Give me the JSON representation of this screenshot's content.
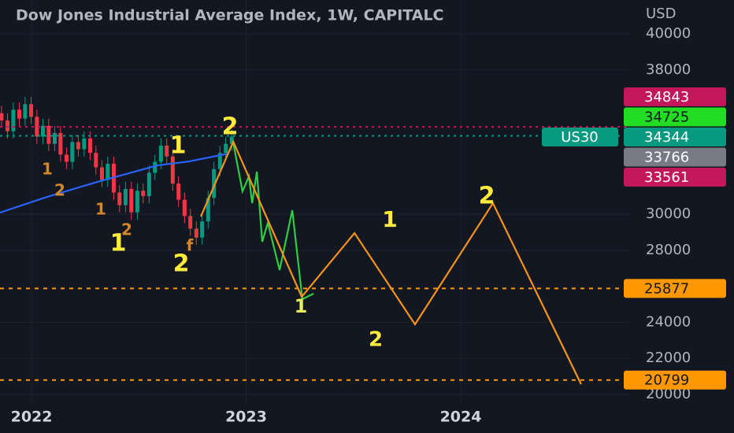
{
  "chart_data": {
    "type": "candlestick",
    "title": "Dow Jones Industrial Average Index, 1W, CAPITALC",
    "currency": "USD",
    "symbol": "US30",
    "xlim": [
      2021.853,
      2024.789
    ],
    "xticks": [
      2022,
      2023,
      2024
    ],
    "ylim": [
      19520,
      41880
    ],
    "yticks": [
      20000,
      22000,
      24000,
      28000,
      30000,
      38000,
      40000
    ],
    "grid": true,
    "candles": {
      "x": [
        2021.86,
        2021.888,
        2021.915,
        2021.943,
        2021.97,
        2021.998,
        2022.025,
        2022.053,
        2022.08,
        2022.108,
        2022.135,
        2022.163,
        2022.19,
        2022.218,
        2022.245,
        2022.273,
        2022.3,
        2022.328,
        2022.355,
        2022.383,
        2022.41,
        2022.438,
        2022.465,
        2022.493,
        2022.52,
        2022.548,
        2022.575,
        2022.603,
        2022.63,
        2022.658,
        2022.685,
        2022.713,
        2022.74,
        2022.768,
        2022.795,
        2022.823,
        2022.85,
        2022.878,
        2022.905,
        2022.933
      ],
      "open": [
        35600,
        35200,
        34600,
        35800,
        35300,
        36100,
        35400,
        34300,
        34900,
        33900,
        34500,
        33300,
        32900,
        34000,
        33600,
        34200,
        33400,
        32600,
        31900,
        32800,
        31200,
        30500,
        31400,
        30100,
        31300,
        31000,
        32300,
        32900,
        33800,
        33200,
        31700,
        30800,
        29900,
        29200,
        28700,
        29600,
        30900,
        32500,
        33400,
        33900
      ],
      "high": [
        36000,
        35600,
        36200,
        36200,
        36500,
        36500,
        35800,
        35300,
        35300,
        34900,
        34900,
        33700,
        34400,
        34400,
        34600,
        34600,
        33800,
        33000,
        33200,
        33200,
        31600,
        31800,
        31800,
        31700,
        31700,
        32700,
        33300,
        34200,
        34200,
        33600,
        32100,
        31200,
        30300,
        29600,
        30000,
        31300,
        32900,
        33800,
        34300,
        34700
      ],
      "low": [
        34800,
        34200,
        34200,
        34900,
        34900,
        35000,
        33900,
        33900,
        33500,
        33500,
        32900,
        32500,
        32500,
        33200,
        33200,
        33000,
        32200,
        31500,
        31500,
        30800,
        30100,
        30100,
        29700,
        29700,
        30600,
        30600,
        31900,
        32500,
        32800,
        31300,
        30400,
        29500,
        28800,
        28300,
        28300,
        29200,
        30500,
        32100,
        33000,
        33500
      ],
      "close": [
        35200,
        34600,
        35800,
        35300,
        36100,
        35400,
        34300,
        34900,
        33900,
        34500,
        33300,
        32900,
        34000,
        33600,
        34200,
        33400,
        32600,
        31900,
        32800,
        31200,
        30500,
        31400,
        30100,
        31300,
        31000,
        32300,
        32900,
        33800,
        33200,
        31700,
        30800,
        29900,
        29200,
        28700,
        29600,
        30900,
        32500,
        33400,
        33900,
        34300
      ],
      "up_color": "#089981",
      "down_color": "#f23645"
    },
    "series": [
      {
        "color": "#2962ff",
        "x": [
          2021.853,
          2022.073,
          2022.294,
          2022.587,
          2022.734,
          2022.917
        ],
        "values": [
          30087,
          30961,
          31747,
          32707,
          32926,
          33362
        ]
      },
      {
        "color": "#2ecc40",
        "x": [
          2022.939,
          2022.983,
          2023.013,
          2023.028,
          2023.05,
          2023.075,
          2023.101,
          2023.156,
          2023.215,
          2023.262,
          2023.314
        ],
        "values": [
          34017,
          31266,
          32096,
          30611,
          32358,
          28472,
          29520,
          26900,
          30218,
          25284,
          25590
        ]
      },
      {
        "color": "#f7931a",
        "x": [
          2022.789,
          2022.94,
          2023.259,
          2023.505,
          2023.787,
          2024.15,
          2024.561
        ],
        "values": [
          29870,
          34020,
          25415,
          28950,
          23890,
          30610,
          20570
        ]
      }
    ],
    "price_labels": [
      {
        "value": 34843,
        "color": "#c2185b",
        "line": true
      },
      {
        "value": 34725,
        "color": "#22dd22",
        "line": false
      },
      {
        "value": 34344,
        "color": "#089981",
        "line": true
      },
      {
        "value": 33766,
        "color": "#787b86",
        "line": false
      },
      {
        "value": 33561,
        "color": "#c2185b",
        "line": false
      },
      {
        "value": 25877,
        "color": "#ff9800",
        "line": true
      },
      {
        "value": 20799,
        "color": "#ff9800",
        "line": true
      }
    ],
    "annotations": [
      "1",
      "2",
      "1",
      "2",
      "1",
      "2",
      "2",
      "1",
      "1",
      "2",
      "1",
      "2",
      "f"
    ]
  }
}
